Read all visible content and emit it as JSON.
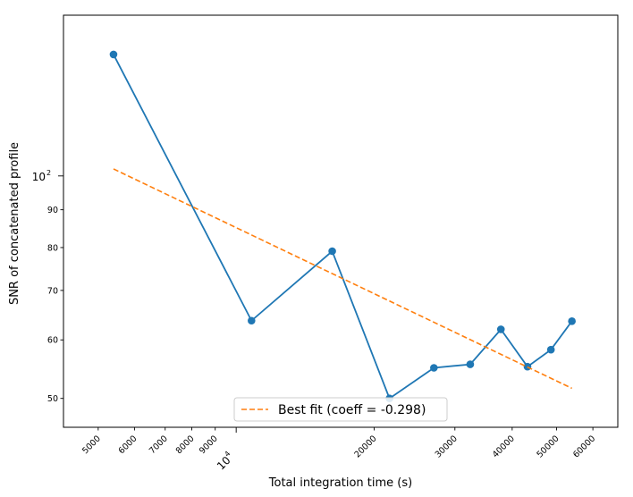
{
  "chart_data": {
    "type": "line",
    "xscale": "log",
    "yscale": "log",
    "xlim": [
      4200,
      68000
    ],
    "ylim": [
      45.7,
      165
    ],
    "xlabel": "Total integration time (s)",
    "ylabel": "SNR of concatenated profile",
    "grid": false,
    "x_ticks": [
      {
        "value": 5000,
        "label": "5000"
      },
      {
        "value": 6000,
        "label": "6000"
      },
      {
        "value": 7000,
        "label": "7000"
      },
      {
        "value": 8000,
        "label": "8000"
      },
      {
        "value": 9000,
        "label": "9000"
      },
      {
        "value": 10000,
        "label": "10",
        "exp": "4"
      },
      {
        "value": 20000,
        "label": "20000"
      },
      {
        "value": 30000,
        "label": "30000"
      },
      {
        "value": 40000,
        "label": "40000"
      },
      {
        "value": 50000,
        "label": "50000"
      },
      {
        "value": 60000,
        "label": "60000"
      }
    ],
    "y_ticks": [
      {
        "value": 50,
        "label": "50"
      },
      {
        "value": 60,
        "label": "60"
      },
      {
        "value": 70,
        "label": "70"
      },
      {
        "value": 80,
        "label": "80"
      },
      {
        "value": 90,
        "label": "90"
      },
      {
        "value": 100,
        "label": "10",
        "exp": "2"
      }
    ],
    "series": [
      {
        "kind": "data",
        "color": "#1f77b4",
        "marker": "circle",
        "x": [
          5400,
          10800,
          16200,
          21600,
          27000,
          32400,
          37800,
          43200,
          48600,
          54000
        ],
        "y": [
          146,
          63.7,
          79.1,
          50,
          55,
          55.6,
          62,
          55.2,
          58.2,
          63.6
        ]
      },
      {
        "kind": "fit",
        "name": "Best fit (coeff = -0.298)",
        "color": "#ff7f0e",
        "dash": "dashed",
        "x": [
          5400,
          54000
        ],
        "y": [
          102.2,
          51.6
        ]
      }
    ],
    "legend": {
      "position": "bottom-center",
      "entries": [
        "Best fit (coeff = -0.298)"
      ]
    }
  }
}
